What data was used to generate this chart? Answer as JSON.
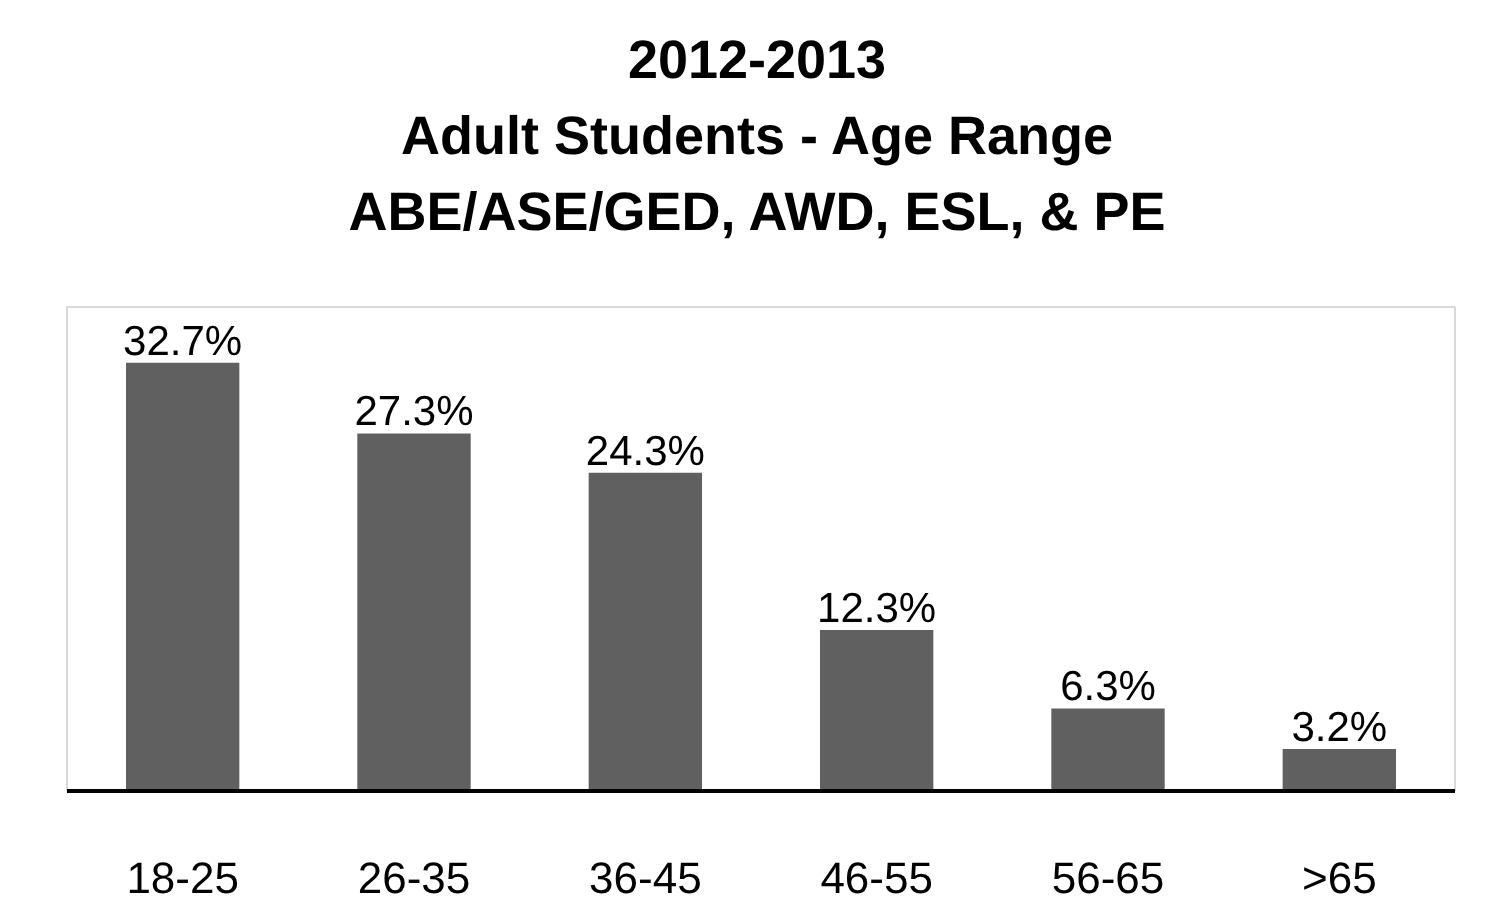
{
  "chart_data": {
    "type": "bar",
    "title": "2012-2013\nAdult Students - Age Range\nABE/ASE/GED, AWD, ESL, & PE",
    "categories": [
      "18-25",
      "26-35",
      "36-45",
      "46-55",
      "56-65",
      ">65"
    ],
    "values": [
      32.7,
      27.3,
      24.3,
      12.3,
      6.3,
      3.2
    ],
    "color": "#606060",
    "value_labels": [
      "32.7%",
      "27.3%",
      "24.3%",
      "12.3%",
      "6.3%",
      "3.2%"
    ]
  }
}
